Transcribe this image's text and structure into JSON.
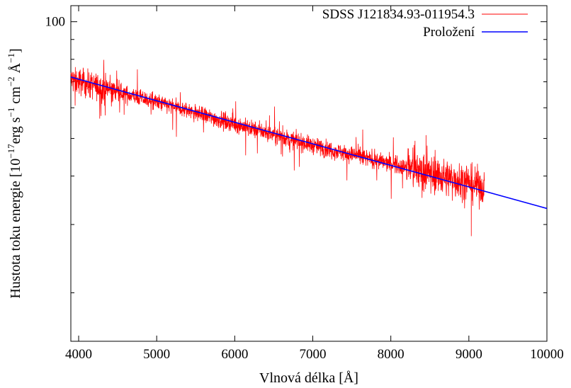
{
  "chart_data": {
    "type": "line",
    "title": "",
    "xlabel": "Vlnová délka [Å]",
    "ylabel_parts": {
      "prefix": "Hustota toku energie [10",
      "exp1": "−17",
      "mid1": "erg s",
      "exp2": "−1",
      "mid2": " cm",
      "exp3": "−2",
      "mid3": " Å",
      "exp4": "−1",
      "suffix": "]"
    },
    "xlim": [
      3900,
      10000
    ],
    "ylim": [
      15,
      110
    ],
    "yscale": "log",
    "x_ticks": [
      4000,
      5000,
      6000,
      7000,
      8000,
      9000,
      10000
    ],
    "x_tick_labels": [
      "4000",
      "5000",
      "6000",
      "7000",
      "8000",
      "9000",
      "10000"
    ],
    "y_ticks": [
      100
    ],
    "y_tick_labels": [
      "100"
    ],
    "legend_position": "top-right",
    "series": [
      {
        "name": "SDSS J121834.93-011954.3",
        "color": "#ff0000",
        "style": "noisy spectrum",
        "x_range": [
          3900,
          9200
        ],
        "trend_points": [
          {
            "x": 3900,
            "y": 71
          },
          {
            "x": 5000,
            "y": 62
          },
          {
            "x": 6000,
            "y": 54.5
          },
          {
            "x": 7000,
            "y": 48
          },
          {
            "x": 8000,
            "y": 43
          },
          {
            "x": 9000,
            "y": 38.5
          },
          {
            "x": 9200,
            "y": 37.5
          }
        ],
        "notable_features": [
          {
            "x": 8450,
            "y": 51
          },
          {
            "x": 9030,
            "y": 28
          }
        ]
      },
      {
        "name": "Proložení",
        "color": "#0000ff",
        "style": "line",
        "x": [
          3900,
          10000
        ],
        "y": [
          72,
          33
        ]
      }
    ]
  }
}
